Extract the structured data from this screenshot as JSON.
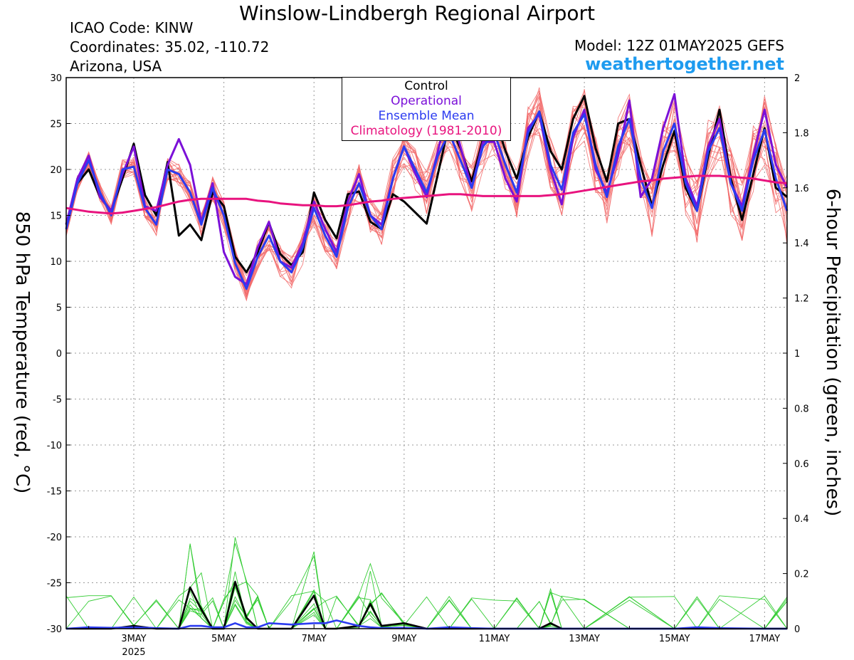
{
  "title": "Winslow-Lindbergh Regional Airport",
  "station": {
    "icao": "ICAO Code: KINW",
    "coords": "Coordinates: 35.02, -110.72",
    "region": "Arizona, USA"
  },
  "model": "Model: 12Z 01MAY2025 GEFS",
  "site": "weathertogether.net",
  "colors": {
    "control": "#000000",
    "operational": "#7b10d8",
    "ensemble_mean": "#2b3bf0",
    "climatology": "#e8137e",
    "members": "#f26a6a",
    "precip_members": "#33cc33",
    "site": "#1e9bef"
  },
  "chart_data": {
    "type": "line",
    "title": "Winslow-Lindbergh Regional Airport",
    "ylabel": "850 hPa Temperature (red, °C)",
    "y2label": "6-hour Precipitation (green, inches)",
    "ylim": [
      -30,
      30
    ],
    "y2lim": [
      0,
      2
    ],
    "yticks": [
      "30",
      "25",
      "20",
      "15",
      "10",
      "5",
      "0",
      "-5",
      "-10",
      "-15",
      "-20",
      "-25",
      "-30"
    ],
    "y2ticks": [
      "2",
      "1.8",
      "1.6",
      "1.4",
      "1.2",
      "1",
      "0.8",
      "0.6",
      "0.4",
      "0.2",
      "0"
    ],
    "xlim": [
      1.5,
      17.5
    ],
    "x_unit": "day of May 2025",
    "xticks": [
      {
        "x": 3,
        "label": "3MAY",
        "sub": "2025"
      },
      {
        "x": 5,
        "label": "5MAY",
        "sub": ""
      },
      {
        "x": 7,
        "label": "7MAY",
        "sub": ""
      },
      {
        "x": 9,
        "label": "9MAY",
        "sub": ""
      },
      {
        "x": 11,
        "label": "11MAY",
        "sub": ""
      },
      {
        "x": 13,
        "label": "13MAY",
        "sub": ""
      },
      {
        "x": 15,
        "label": "15MAY",
        "sub": ""
      },
      {
        "x": 17,
        "label": "17MAY",
        "sub": ""
      }
    ],
    "grid": true,
    "legend": {
      "position": "top-center",
      "entries": [
        {
          "label": "Control",
          "color": "#000000"
        },
        {
          "label": "Operational",
          "color": "#7b10d8"
        },
        {
          "label": "Ensemble Mean",
          "color": "#2b3bf0"
        },
        {
          "label": "Climatology (1981-2010)",
          "color": "#e8137e"
        }
      ]
    },
    "x": [
      1.5,
      1.75,
      2.0,
      2.25,
      2.5,
      2.75,
      3.0,
      3.25,
      3.5,
      3.75,
      4.0,
      4.25,
      4.5,
      4.75,
      5.0,
      5.25,
      5.5,
      5.75,
      6.0,
      6.25,
      6.5,
      6.75,
      7.0,
      7.25,
      7.5,
      7.75,
      8.0,
      8.25,
      8.5,
      8.75,
      9.0,
      9.25,
      9.5,
      9.75,
      10.0,
      10.25,
      10.5,
      10.75,
      11.0,
      11.25,
      11.5,
      11.75,
      12.0,
      12.25,
      12.5,
      12.75,
      13.0,
      13.25,
      13.5,
      13.75,
      14.0,
      14.25,
      14.5,
      14.75,
      15.0,
      15.25,
      15.5,
      15.75,
      16.0,
      16.25,
      16.5,
      16.75,
      17.0,
      17.25,
      17.5
    ],
    "series": [
      {
        "name": "Control",
        "values": [
          14.0,
          18.5,
          20.0,
          17.0,
          15.5,
          19.0,
          22.8,
          17.2,
          15.0,
          20.8,
          12.8,
          14.0,
          12.3,
          17.5,
          16.0,
          10.5,
          8.8,
          11.0,
          14.2,
          10.8,
          9.6,
          11.0,
          17.5,
          14.5,
          12.5,
          17.3,
          17.6,
          14.3,
          13.5,
          17.3,
          16.5,
          15.3,
          14.1,
          19.5,
          25.0,
          22.3,
          18.7,
          23.3,
          25.8,
          22.0,
          19.0,
          23.5,
          26.3,
          22.0,
          20.0,
          25.5,
          28.0,
          22.3,
          18.7,
          25.0,
          25.5,
          20.5,
          16.0,
          20.5,
          24.2,
          18.0,
          15.5,
          21.5,
          26.5,
          19.0,
          14.5,
          19.5,
          24.5,
          18.0,
          17.0
        ]
      },
      {
        "name": "Operational",
        "values": [
          14.0,
          19.0,
          21.5,
          17.0,
          15.5,
          19.5,
          22.5,
          16.0,
          15.5,
          20.5,
          23.3,
          20.5,
          14.3,
          18.5,
          11.0,
          8.3,
          7.5,
          11.5,
          14.3,
          10.0,
          9.3,
          12.0,
          16.5,
          13.5,
          11.0,
          16.5,
          19.5,
          15.0,
          14.0,
          19.0,
          22.5,
          19.5,
          17.0,
          22.0,
          27.0,
          22.5,
          18.0,
          23.0,
          23.0,
          19.0,
          16.5,
          24.5,
          26.0,
          20.0,
          16.2,
          23.5,
          26.5,
          20.0,
          17.5,
          21.5,
          27.5,
          17.0,
          19.0,
          24.5,
          28.2,
          19.0,
          16.0,
          22.5,
          25.5,
          18.5,
          16.0,
          21.5,
          26.5,
          20.5,
          18.0
        ]
      },
      {
        "name": "Ensemble Mean",
        "values": [
          13.5,
          18.5,
          21.0,
          17.5,
          15.0,
          20.0,
          20.3,
          15.8,
          14.0,
          20.0,
          19.5,
          17.5,
          14.0,
          18.0,
          15.0,
          9.8,
          7.0,
          10.5,
          12.8,
          10.0,
          8.8,
          11.5,
          15.8,
          12.8,
          10.5,
          15.8,
          18.5,
          15.0,
          13.5,
          19.0,
          22.5,
          20.0,
          17.5,
          21.5,
          24.0,
          21.0,
          18.0,
          22.5,
          24.0,
          20.5,
          17.5,
          24.0,
          26.3,
          20.5,
          17.8,
          24.0,
          26.0,
          20.5,
          17.0,
          22.5,
          25.5,
          19.0,
          15.8,
          22.0,
          25.0,
          18.5,
          15.5,
          22.0,
          24.5,
          18.5,
          15.5,
          21.0,
          24.3,
          19.0,
          15.5
        ]
      },
      {
        "name": "Climatology (1981-2010)",
        "values": [
          15.8,
          15.6,
          15.4,
          15.3,
          15.2,
          15.3,
          15.5,
          15.7,
          15.9,
          16.2,
          16.5,
          16.7,
          16.8,
          16.8,
          16.8,
          16.8,
          16.8,
          16.6,
          16.5,
          16.3,
          16.2,
          16.1,
          16.1,
          16.0,
          16.0,
          16.1,
          16.3,
          16.5,
          16.6,
          16.8,
          16.9,
          17.0,
          17.1,
          17.2,
          17.3,
          17.3,
          17.2,
          17.1,
          17.1,
          17.1,
          17.1,
          17.1,
          17.1,
          17.2,
          17.3,
          17.5,
          17.7,
          17.9,
          18.1,
          18.3,
          18.5,
          18.7,
          18.8,
          19.0,
          19.1,
          19.2,
          19.3,
          19.3,
          19.3,
          19.2,
          19.1,
          19.0,
          18.8,
          18.6,
          18.5
        ]
      }
    ],
    "precip": {
      "x": [
        1.5,
        2.0,
        2.5,
        3.0,
        3.5,
        4.0,
        4.25,
        4.5,
        4.75,
        5.0,
        5.25,
        5.5,
        5.75,
        6.0,
        6.5,
        7.0,
        7.25,
        7.5,
        8.0,
        8.25,
        8.5,
        9.0,
        9.5,
        10.0,
        10.5,
        11.0,
        11.5,
        12.0,
        12.25,
        12.5,
        13.0,
        14.0,
        15.0,
        15.5,
        16.0,
        17.0,
        17.5
      ],
      "series": [
        {
          "name": "Control",
          "values": [
            0,
            0,
            0,
            0.01,
            0,
            0,
            0.15,
            0.07,
            0,
            0,
            0.17,
            0.04,
            0,
            0,
            0,
            0.12,
            0,
            0,
            0.01,
            0.09,
            0.01,
            0.02,
            0,
            0,
            0,
            0,
            0,
            0,
            0.02,
            0,
            0,
            0,
            0,
            0,
            0,
            0,
            0
          ]
        },
        {
          "name": "Ensemble Mean",
          "values": [
            0,
            0.005,
            0.003,
            0.005,
            0.002,
            0,
            0.01,
            0.01,
            0.005,
            0.005,
            0.02,
            0.005,
            0.005,
            0.02,
            0.015,
            0.02,
            0.02,
            0.03,
            0.01,
            0.005,
            0.002,
            0.003,
            0,
            0.005,
            0.002,
            0,
            0,
            0,
            0,
            0,
            0,
            0,
            0,
            0.005,
            0.002,
            0,
            0
          ]
        }
      ]
    }
  }
}
